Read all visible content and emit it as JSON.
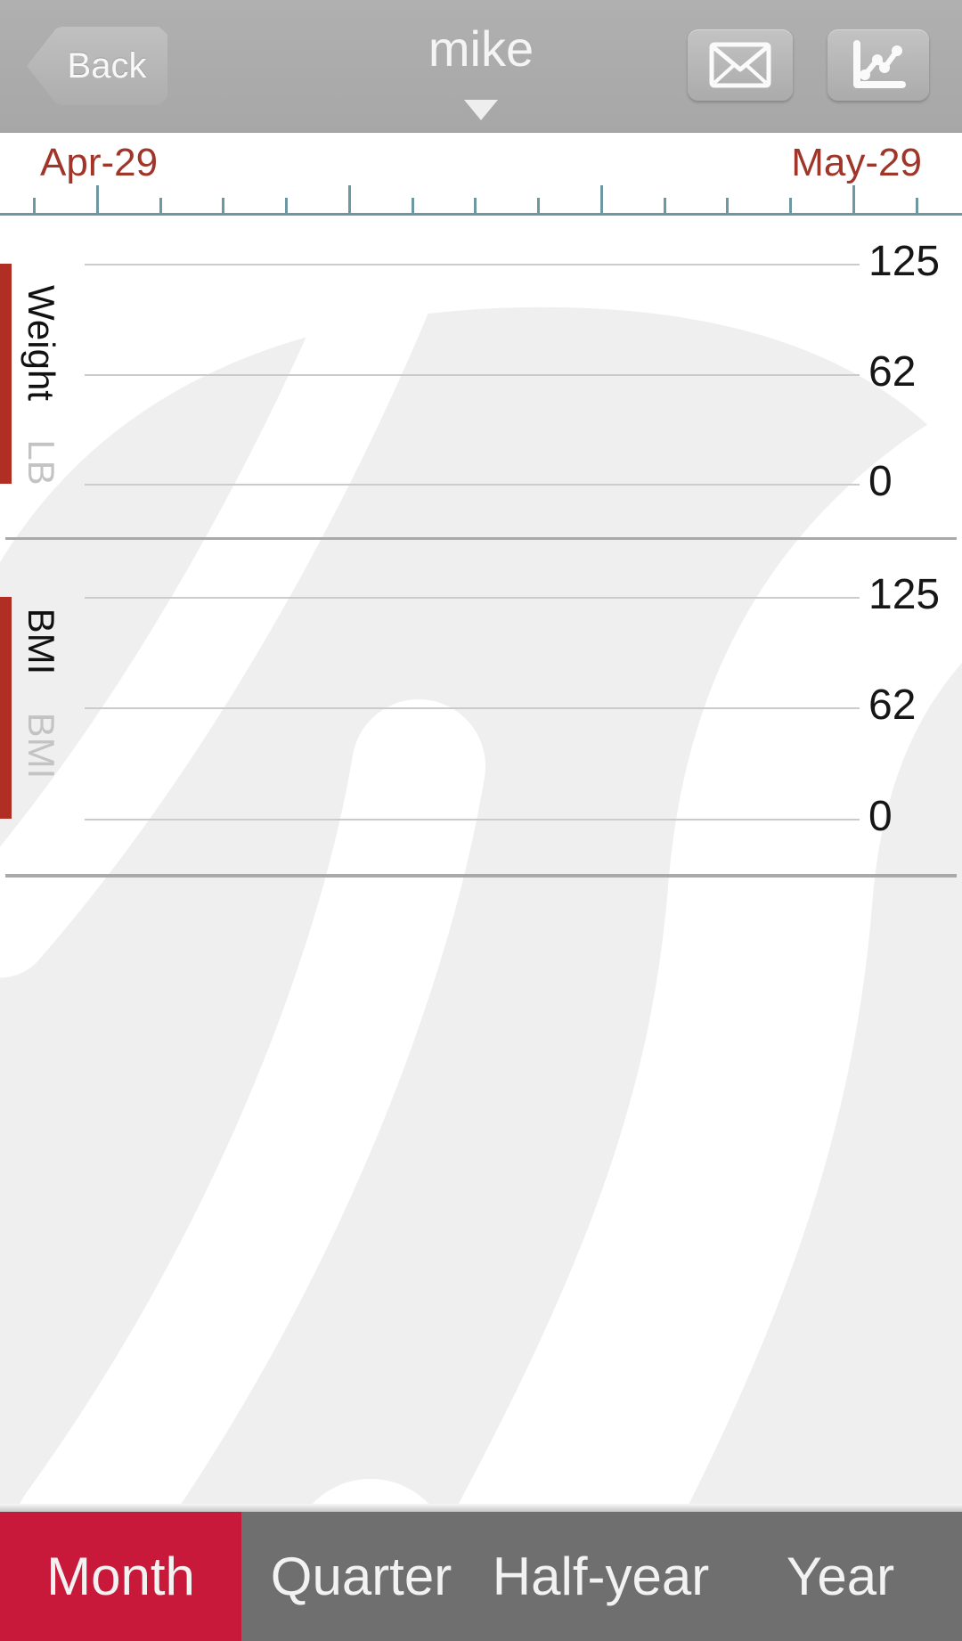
{
  "header": {
    "back_label": "Back",
    "title": "mike"
  },
  "timeline": {
    "start_label": "Apr-29",
    "end_label": "May-29"
  },
  "charts": [
    {
      "axis_title": "Weight",
      "unit_label": "LB",
      "y_tick_labels": [
        "125",
        "62",
        "0"
      ]
    },
    {
      "axis_title": "BMI",
      "unit_label": "BMI",
      "y_tick_labels": [
        "125",
        "62",
        "0"
      ]
    }
  ],
  "tabs": [
    {
      "label": "Month",
      "active": true
    },
    {
      "label": "Quarter",
      "active": false
    },
    {
      "label": "Half-year",
      "active": false
    },
    {
      "label": "Year",
      "active": false
    }
  ],
  "colors": {
    "accent_bar": "#b02e23",
    "active_tab": "#c9193a",
    "date_text": "#a0362a",
    "tick_mark": "#6d98a2"
  },
  "chart_data": [
    {
      "type": "line",
      "title": "Weight",
      "ylabel": "LB",
      "x_range": [
        "Apr-29",
        "May-29"
      ],
      "y_ticks": [
        125,
        62,
        0
      ],
      "ylim": [
        0,
        150
      ],
      "grid": true,
      "series": []
    },
    {
      "type": "line",
      "title": "BMI",
      "ylabel": "BMI",
      "x_range": [
        "Apr-29",
        "May-29"
      ],
      "y_ticks": [
        125,
        62,
        0
      ],
      "ylim": [
        0,
        150
      ],
      "grid": true,
      "series": []
    }
  ]
}
